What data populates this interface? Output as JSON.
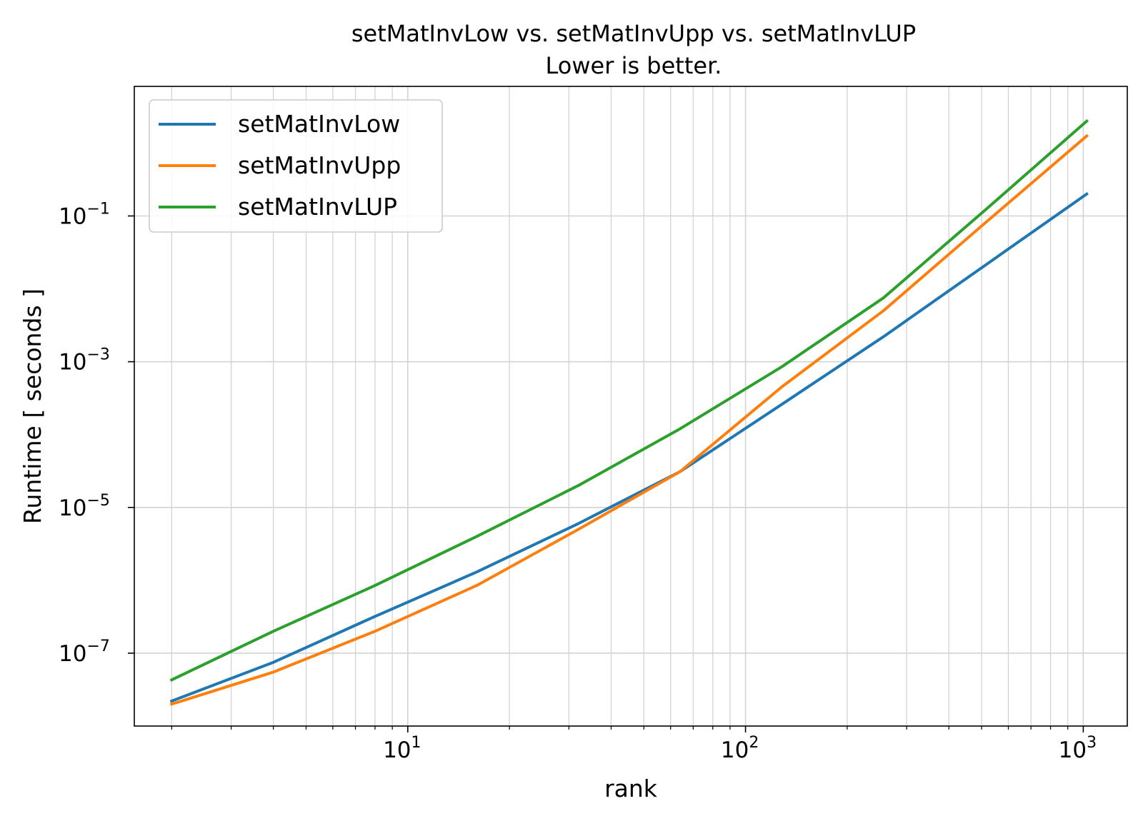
{
  "chart_data": {
    "type": "line",
    "title": "setMatInvLow vs. setMatInvUpp vs. setMatInvLUP",
    "subtitle": "Lower is better.",
    "xlabel": "rank",
    "ylabel": "Runtime [ seconds ]",
    "xscale": "log",
    "yscale": "log",
    "xlim": [
      1.55,
      1350
    ],
    "ylim": [
      1e-08,
      6.0
    ],
    "x_ticks": [
      {
        "value": 10,
        "base": "10",
        "exp": "1"
      },
      {
        "value": 100,
        "base": "10",
        "exp": "2"
      },
      {
        "value": 1000,
        "base": "10",
        "exp": "3"
      }
    ],
    "y_ticks": [
      {
        "value": 1e-07,
        "base": "10",
        "exp": "−7"
      },
      {
        "value": 1e-05,
        "base": "10",
        "exp": "−5"
      },
      {
        "value": 0.001,
        "base": "10",
        "exp": "−3"
      },
      {
        "value": 0.1,
        "base": "10",
        "exp": "−1"
      }
    ],
    "grid": true,
    "legend_position": "top-left",
    "x": [
      2,
      4,
      8,
      16,
      32,
      64,
      128,
      256,
      512,
      1024
    ],
    "series": [
      {
        "name": "setMatInvLow",
        "color": "#1f77b4",
        "values": [
          2.2e-08,
          7.5e-08,
          3.2e-07,
          1.3e-06,
          6e-06,
          3.1e-05,
          0.00026,
          0.0022,
          0.021,
          0.2
        ]
      },
      {
        "name": "setMatInvUpp",
        "color": "#ff7f0e",
        "values": [
          2e-08,
          5.5e-08,
          2e-07,
          8.5e-07,
          5e-06,
          3.1e-05,
          0.00045,
          0.005,
          0.08,
          1.25
        ]
      },
      {
        "name": "setMatInvLUP",
        "color": "#2ca02c",
        "values": [
          4.3e-08,
          2e-07,
          8.5e-07,
          4e-06,
          2e-05,
          0.00012,
          0.00085,
          0.0075,
          0.12,
          2.0
        ]
      }
    ]
  }
}
